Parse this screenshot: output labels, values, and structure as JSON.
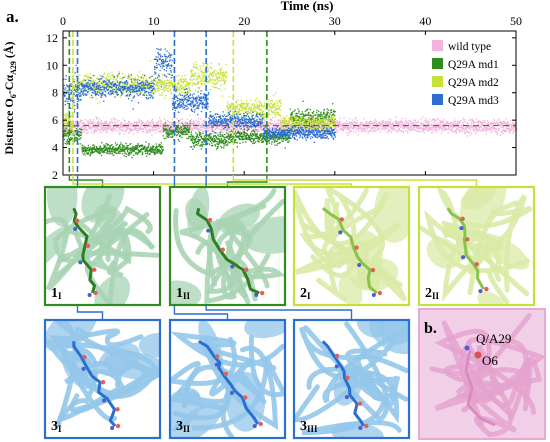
{
  "panel_a_label": "a.",
  "panel_b_label": "b.",
  "chart_data": {
    "type": "scatter",
    "xlabel": "Time (ns)",
    "ylabel": "Distance O6-Cα A29 (Å)",
    "ylabel_parts": [
      "Distance O",
      "6",
      "-Cα",
      "A29",
      " (Å)"
    ],
    "xlim": [
      0,
      50
    ],
    "ylim": [
      2,
      12.5
    ],
    "xticks": [
      0,
      10,
      20,
      30,
      40,
      50
    ],
    "yticks": [
      2,
      4,
      6,
      8,
      10,
      12
    ],
    "grid": false,
    "legend_position": "top-right",
    "reference_line_y": 5.6,
    "series": [
      {
        "name": "wild type",
        "color": "#f2b3dc",
        "t_end": 50,
        "segments": [
          [
            0,
            50,
            5.6,
            0.35
          ]
        ]
      },
      {
        "name": "Q29A md1",
        "color": "#2e8b1e",
        "t_end": 30,
        "segments": [
          [
            0,
            2,
            5.0,
            0.4
          ],
          [
            2,
            5,
            3.9,
            0.25
          ],
          [
            5,
            11,
            3.9,
            0.3
          ],
          [
            11,
            14,
            5.2,
            0.4
          ],
          [
            14,
            18,
            4.6,
            0.4
          ],
          [
            18,
            25,
            4.8,
            0.35
          ],
          [
            25,
            30,
            6.2,
            0.45
          ]
        ]
      },
      {
        "name": "Q29A md2",
        "color": "#c6e03a",
        "t_end": 30,
        "segments": [
          [
            0,
            1,
            6.0,
            0.5
          ],
          [
            1,
            14,
            8.6,
            0.55
          ],
          [
            14,
            18,
            9.2,
            0.6
          ],
          [
            18,
            24,
            6.8,
            0.5
          ],
          [
            24,
            30,
            5.8,
            0.4
          ]
        ]
      },
      {
        "name": "Q29A md3",
        "color": "#2c6fcf",
        "t_end": 30,
        "segments": [
          [
            0,
            2,
            8.0,
            0.8
          ],
          [
            2,
            10,
            8.4,
            0.5
          ],
          [
            10,
            12,
            10.2,
            0.7
          ],
          [
            12,
            16,
            7.4,
            0.5
          ],
          [
            16,
            22,
            6.0,
            0.4
          ],
          [
            22,
            30,
            5.1,
            0.3
          ]
        ]
      }
    ],
    "markers": [
      {
        "t": 0.7,
        "color": "#2e8b1e"
      },
      {
        "t": 1.1,
        "color": "#c6e03a"
      },
      {
        "t": 1.6,
        "color": "#2c6fcf"
      },
      {
        "t": 12.3,
        "color": "#2c6fcf"
      },
      {
        "t": 15.8,
        "color": "#2c6fcf"
      },
      {
        "t": 18.8,
        "color": "#c6e03a"
      },
      {
        "t": 22.5,
        "color": "#2e8b1e"
      }
    ]
  },
  "snapshots": [
    {
      "id": "1I",
      "main": "1",
      "sub": "I",
      "border": "#2e8b1e",
      "bg": "#a8d4b4",
      "stick": "#2e7d1f"
    },
    {
      "id": "1II",
      "main": "1",
      "sub": "II",
      "border": "#2e8b1e",
      "bg": "#a8d4b4",
      "stick": "#2e7d1f"
    },
    {
      "id": "2I",
      "main": "2",
      "sub": "I",
      "border": "#c6e03a",
      "bg": "#d9eaa6",
      "stick": "#8bc34a"
    },
    {
      "id": "2II",
      "main": "2",
      "sub": "II",
      "border": "#c6e03a",
      "bg": "#d9eaa6",
      "stick": "#8bc34a"
    },
    {
      "id": "3I",
      "main": "3",
      "sub": "I",
      "border": "#2c6fcf",
      "bg": "#93c6ea",
      "stick": "#2a6fd1"
    },
    {
      "id": "3II",
      "main": "3",
      "sub": "II",
      "border": "#2c6fcf",
      "bg": "#93c6ea",
      "stick": "#2a6fd1"
    },
    {
      "id": "3III",
      "main": "3",
      "sub": "III",
      "border": "#2c6fcf",
      "bg": "#93c6ea",
      "stick": "#2a6fd1"
    }
  ],
  "panel_b": {
    "residue_label": "Q/A29",
    "atom_label": "O6",
    "border": "#e6a8d6",
    "bg": "#f1cfe6"
  }
}
